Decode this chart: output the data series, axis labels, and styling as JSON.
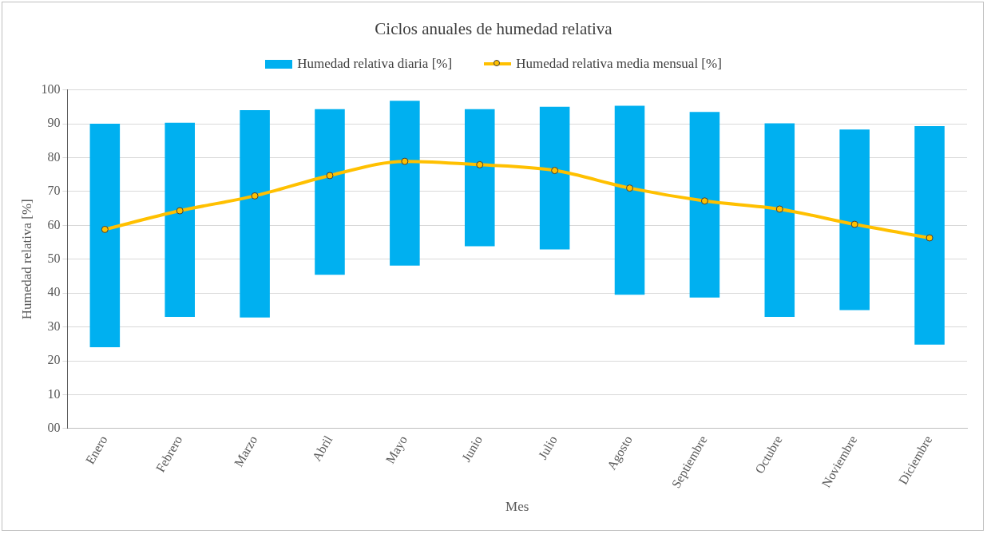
{
  "chart_data": {
    "type": "bar",
    "title": "Ciclos anuales de humedad relativa",
    "xlabel": "Mes",
    "ylabel": "Humedad relativa [%]",
    "categories": [
      "Enero",
      "Febrero",
      "Marzo",
      "Abril",
      "Mayo",
      "Junio",
      "Julio",
      "Agosto",
      "Septiembre",
      "Octubre",
      "Noviembre",
      "Diciembre"
    ],
    "series": [
      {
        "name": "Humedad relativa diaria [%]",
        "color": "#00b0f0",
        "base": [
          24,
          33,
          32.8,
          45.4,
          48.1,
          53.8,
          52.9,
          39.5,
          38.7,
          33,
          35,
          24.8
        ],
        "values": [
          66,
          57.3,
          61.2,
          48.9,
          48.7,
          40.5,
          42.1,
          55.8,
          54.8,
          57.1,
          53.3,
          64.5
        ]
      },
      {
        "name": "Humedad relativa media mensual [%]",
        "type": "line",
        "color": "#ffc000",
        "marker": "circle",
        "values": [
          58.8,
          64.3,
          68.7,
          74.7,
          78.9,
          77.9,
          76.2,
          71,
          67.2,
          64.8,
          60.3,
          56.3
        ]
      }
    ],
    "ylim": [
      0,
      100
    ],
    "yticks": [
      {
        "value": 0,
        "label": "00"
      },
      10,
      20,
      30,
      40,
      50,
      60,
      70,
      80,
      90,
      100
    ],
    "grid": "y",
    "legend": "top"
  }
}
